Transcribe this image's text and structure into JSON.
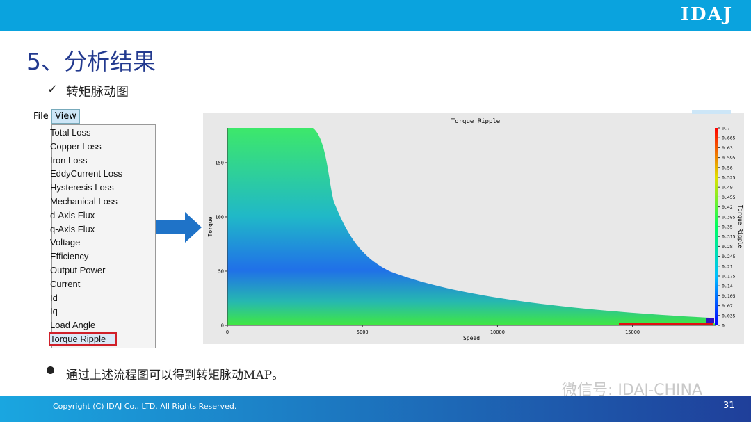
{
  "header": {
    "logo": "IDAJ"
  },
  "title": "5、分析结果",
  "subtitle": "转矩脉动图",
  "menu": {
    "file": "File",
    "view": "View",
    "items": [
      "Total Loss",
      "Copper Loss",
      "Iron Loss",
      "EddyCurrent Loss",
      "Hysteresis Loss",
      "Mechanical Loss",
      "d-Axis Flux",
      "q-Axis Flux",
      "Voltage",
      "Efficiency",
      "Output Power",
      "Current",
      "Id",
      "Iq",
      "Load Angle",
      "Torque Ripple"
    ]
  },
  "chart_data": {
    "type": "contour",
    "title": "Torque Ripple",
    "x_label": "Speed",
    "y_label": "Torque",
    "colorbar_label": "Torque Ripple",
    "xlim": [
      0,
      18100
    ],
    "xticks": [
      0,
      5000,
      10000,
      15000
    ],
    "ylim": [
      0,
      182
    ],
    "yticks": [
      0,
      50,
      100,
      150
    ],
    "clim": [
      0,
      0.7
    ],
    "cticks": [
      0,
      0.035,
      0.07,
      0.105,
      0.14,
      0.175,
      0.21,
      0.245,
      0.28,
      0.315,
      0.35,
      0.385,
      0.42,
      0.455,
      0.49,
      0.525,
      0.56,
      0.595,
      0.63,
      0.665,
      0.7
    ]
  },
  "bullet": "通过上述流程图可以得到转矩脉动MAP。",
  "watermark": "微信号: IDAJ-CHINA",
  "footer": {
    "copyright": "Copyright (C)  IDAJ Co., LTD. All Rights Reserved.",
    "page": "31"
  }
}
